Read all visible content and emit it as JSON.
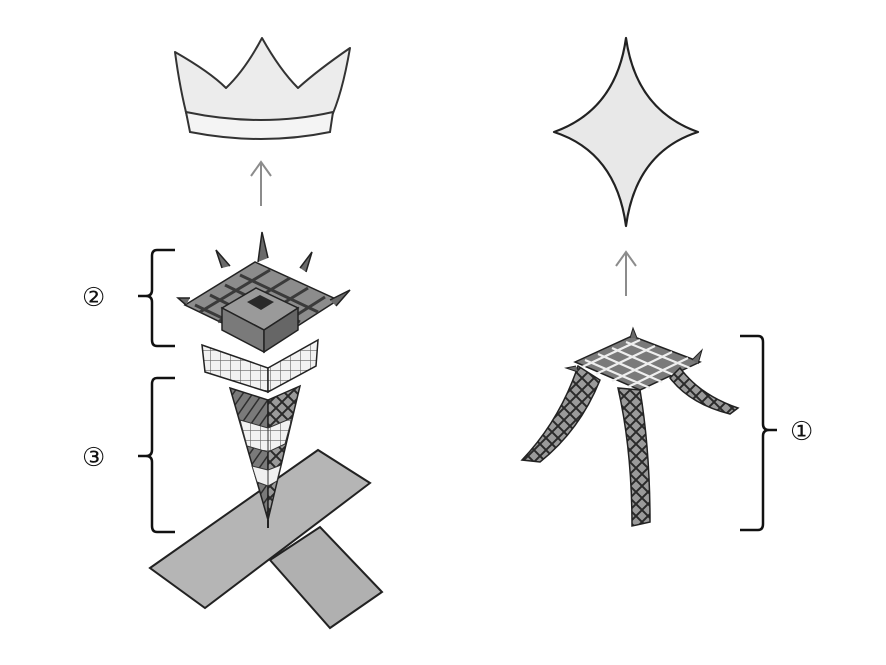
{
  "labels": {
    "label_1": "①",
    "label_2": "②",
    "label_3": "③"
  },
  "icons": {
    "crown": "crown-icon",
    "star": "four-point-star-icon",
    "arrow": "arrow-up-icon"
  },
  "colors": {
    "line": "#333333",
    "fill_light": "#e6e6e6",
    "fill_mid": "#aaaaaa",
    "fill_dark": "#555555",
    "arrow": "#8c8c8c"
  }
}
